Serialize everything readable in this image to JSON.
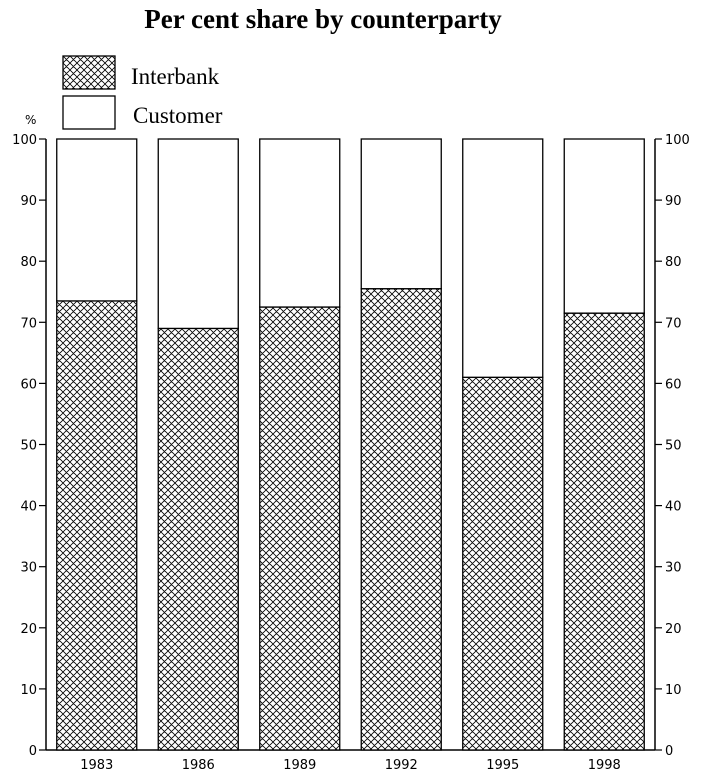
{
  "chart_data": {
    "type": "bar",
    "stacked": true,
    "title": "Per cent share by counterparty",
    "unit_label": "%",
    "categories": [
      "1983",
      "1986",
      "1989",
      "1992",
      "1995",
      "1998"
    ],
    "series": [
      {
        "name": "Interbank",
        "values": [
          73.5,
          69,
          72.5,
          75.5,
          61,
          71.5
        ],
        "pattern": "crosshatch"
      },
      {
        "name": "Customer",
        "values": [
          26.5,
          31,
          27.5,
          24.5,
          39,
          28.5
        ],
        "pattern": "none"
      }
    ],
    "ylim": [
      0,
      100
    ],
    "yticks": [
      0,
      10,
      20,
      30,
      40,
      50,
      60,
      70,
      80,
      90,
      100
    ],
    "dual_y_axis": true,
    "grid": false,
    "legend_position": "top-left",
    "colors": {
      "ink": "#000000",
      "fill": "#ffffff"
    }
  }
}
